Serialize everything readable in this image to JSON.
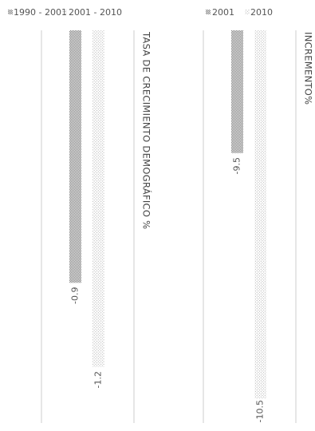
{
  "chart_data": [
    {
      "type": "bar",
      "title": "TASA DE CRECIMIENTO DEMOGRÁFICO %",
      "series": [
        {
          "name": "1990 - 2001",
          "color": "#7a7a7a",
          "values": [
            -0.9
          ]
        },
        {
          "name": "2001 - 2010",
          "color": "#a8a8a8",
          "values": [
            -1.2
          ]
        }
      ],
      "ylim": [
        -1.4,
        0
      ]
    },
    {
      "type": "bar",
      "title": "INCREMENTO%",
      "series": [
        {
          "name": "2001",
          "color": "#7a7a7a",
          "values": [
            -9.5
          ]
        },
        {
          "name": "2010",
          "color": "#a8a8a8",
          "values": [
            -10.5
          ]
        }
      ],
      "ylim": [
        -10.6,
        -9
      ]
    }
  ]
}
